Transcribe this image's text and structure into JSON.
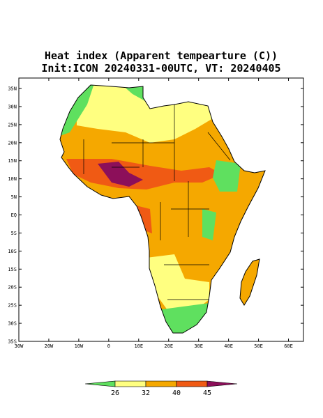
{
  "map": {
    "title": "Heat index (Apparent tempearture (C))",
    "subtitle": "Init:ICON 20240331-00UTC, VT: 20240405",
    "lon_lim": [
      -30,
      65
    ],
    "lat_lim": [
      -35,
      37.9
    ],
    "lat_ticks": [
      {
        "value": 35,
        "label": "35N"
      },
      {
        "value": 30,
        "label": "30N"
      },
      {
        "value": 25,
        "label": "25N"
      },
      {
        "value": 20,
        "label": "20N"
      },
      {
        "value": 15,
        "label": "15N"
      },
      {
        "value": 10,
        "label": "10N"
      },
      {
        "value": 5,
        "label": "5N"
      },
      {
        "value": 0,
        "label": "EQ"
      },
      {
        "value": -5,
        "label": "5S"
      },
      {
        "value": -10,
        "label": "10S"
      },
      {
        "value": -15,
        "label": "15S"
      },
      {
        "value": -20,
        "label": "20S"
      },
      {
        "value": -25,
        "label": "25S"
      },
      {
        "value": -30,
        "label": "30S"
      },
      {
        "value": -35,
        "label": "35S"
      }
    ],
    "lon_ticks": [
      {
        "value": -30,
        "label": "30W"
      },
      {
        "value": -20,
        "label": "20W"
      },
      {
        "value": -10,
        "label": "10W"
      },
      0,
      {
        "value": 10,
        "label": "10E"
      },
      {
        "value": 20,
        "label": "20E"
      },
      {
        "value": 30,
        "label": "30E"
      },
      {
        "value": 40,
        "label": "40E"
      },
      {
        "value": 50,
        "label": "50E"
      },
      {
        "value": 60,
        "label": "60E"
      }
    ],
    "colorbar": {
      "levels": [
        26,
        32,
        40,
        45
      ],
      "colors": [
        "#5fe05f",
        "#ffff80",
        "#f5a800",
        "#f05a14",
        "#8c0f5a"
      ]
    }
  }
}
